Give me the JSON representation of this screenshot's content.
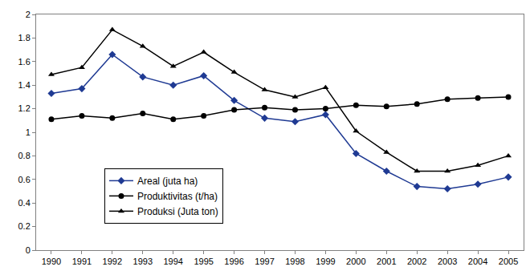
{
  "chart_data": {
    "type": "line",
    "categories": [
      "1990",
      "1991",
      "1992",
      "1993",
      "1994",
      "1995",
      "1996",
      "1997",
      "1998",
      "1999",
      "2000",
      "2001",
      "2002",
      "2003",
      "2004",
      "2005"
    ],
    "series": [
      {
        "name": "Areal (juta ha)",
        "color": "#1f3a93",
        "marker": "diamond",
        "values": [
          1.33,
          1.37,
          1.66,
          1.47,
          1.4,
          1.48,
          1.27,
          1.12,
          1.09,
          1.15,
          0.82,
          0.67,
          0.54,
          0.52,
          0.56,
          0.62
        ]
      },
      {
        "name": "Produktivitas (t/ha)",
        "color": "#000000",
        "marker": "circle",
        "values": [
          1.11,
          1.14,
          1.12,
          1.16,
          1.11,
          1.14,
          1.19,
          1.21,
          1.19,
          1.2,
          1.23,
          1.22,
          1.24,
          1.28,
          1.29,
          1.3
        ]
      },
      {
        "name": "Produksi (Juta ton)",
        "color": "#000000",
        "marker": "triangle-up",
        "values": [
          1.49,
          1.55,
          1.87,
          1.73,
          1.56,
          1.68,
          1.51,
          1.36,
          1.3,
          1.38,
          1.01,
          0.83,
          0.67,
          0.67,
          0.72,
          0.8
        ]
      }
    ],
    "ylim": [
      0,
      2
    ],
    "yticks": [
      0,
      0.2,
      0.4,
      0.6,
      0.8,
      1,
      1.2,
      1.4,
      1.6,
      1.8,
      2
    ],
    "grid": false,
    "legend": "lower left"
  }
}
